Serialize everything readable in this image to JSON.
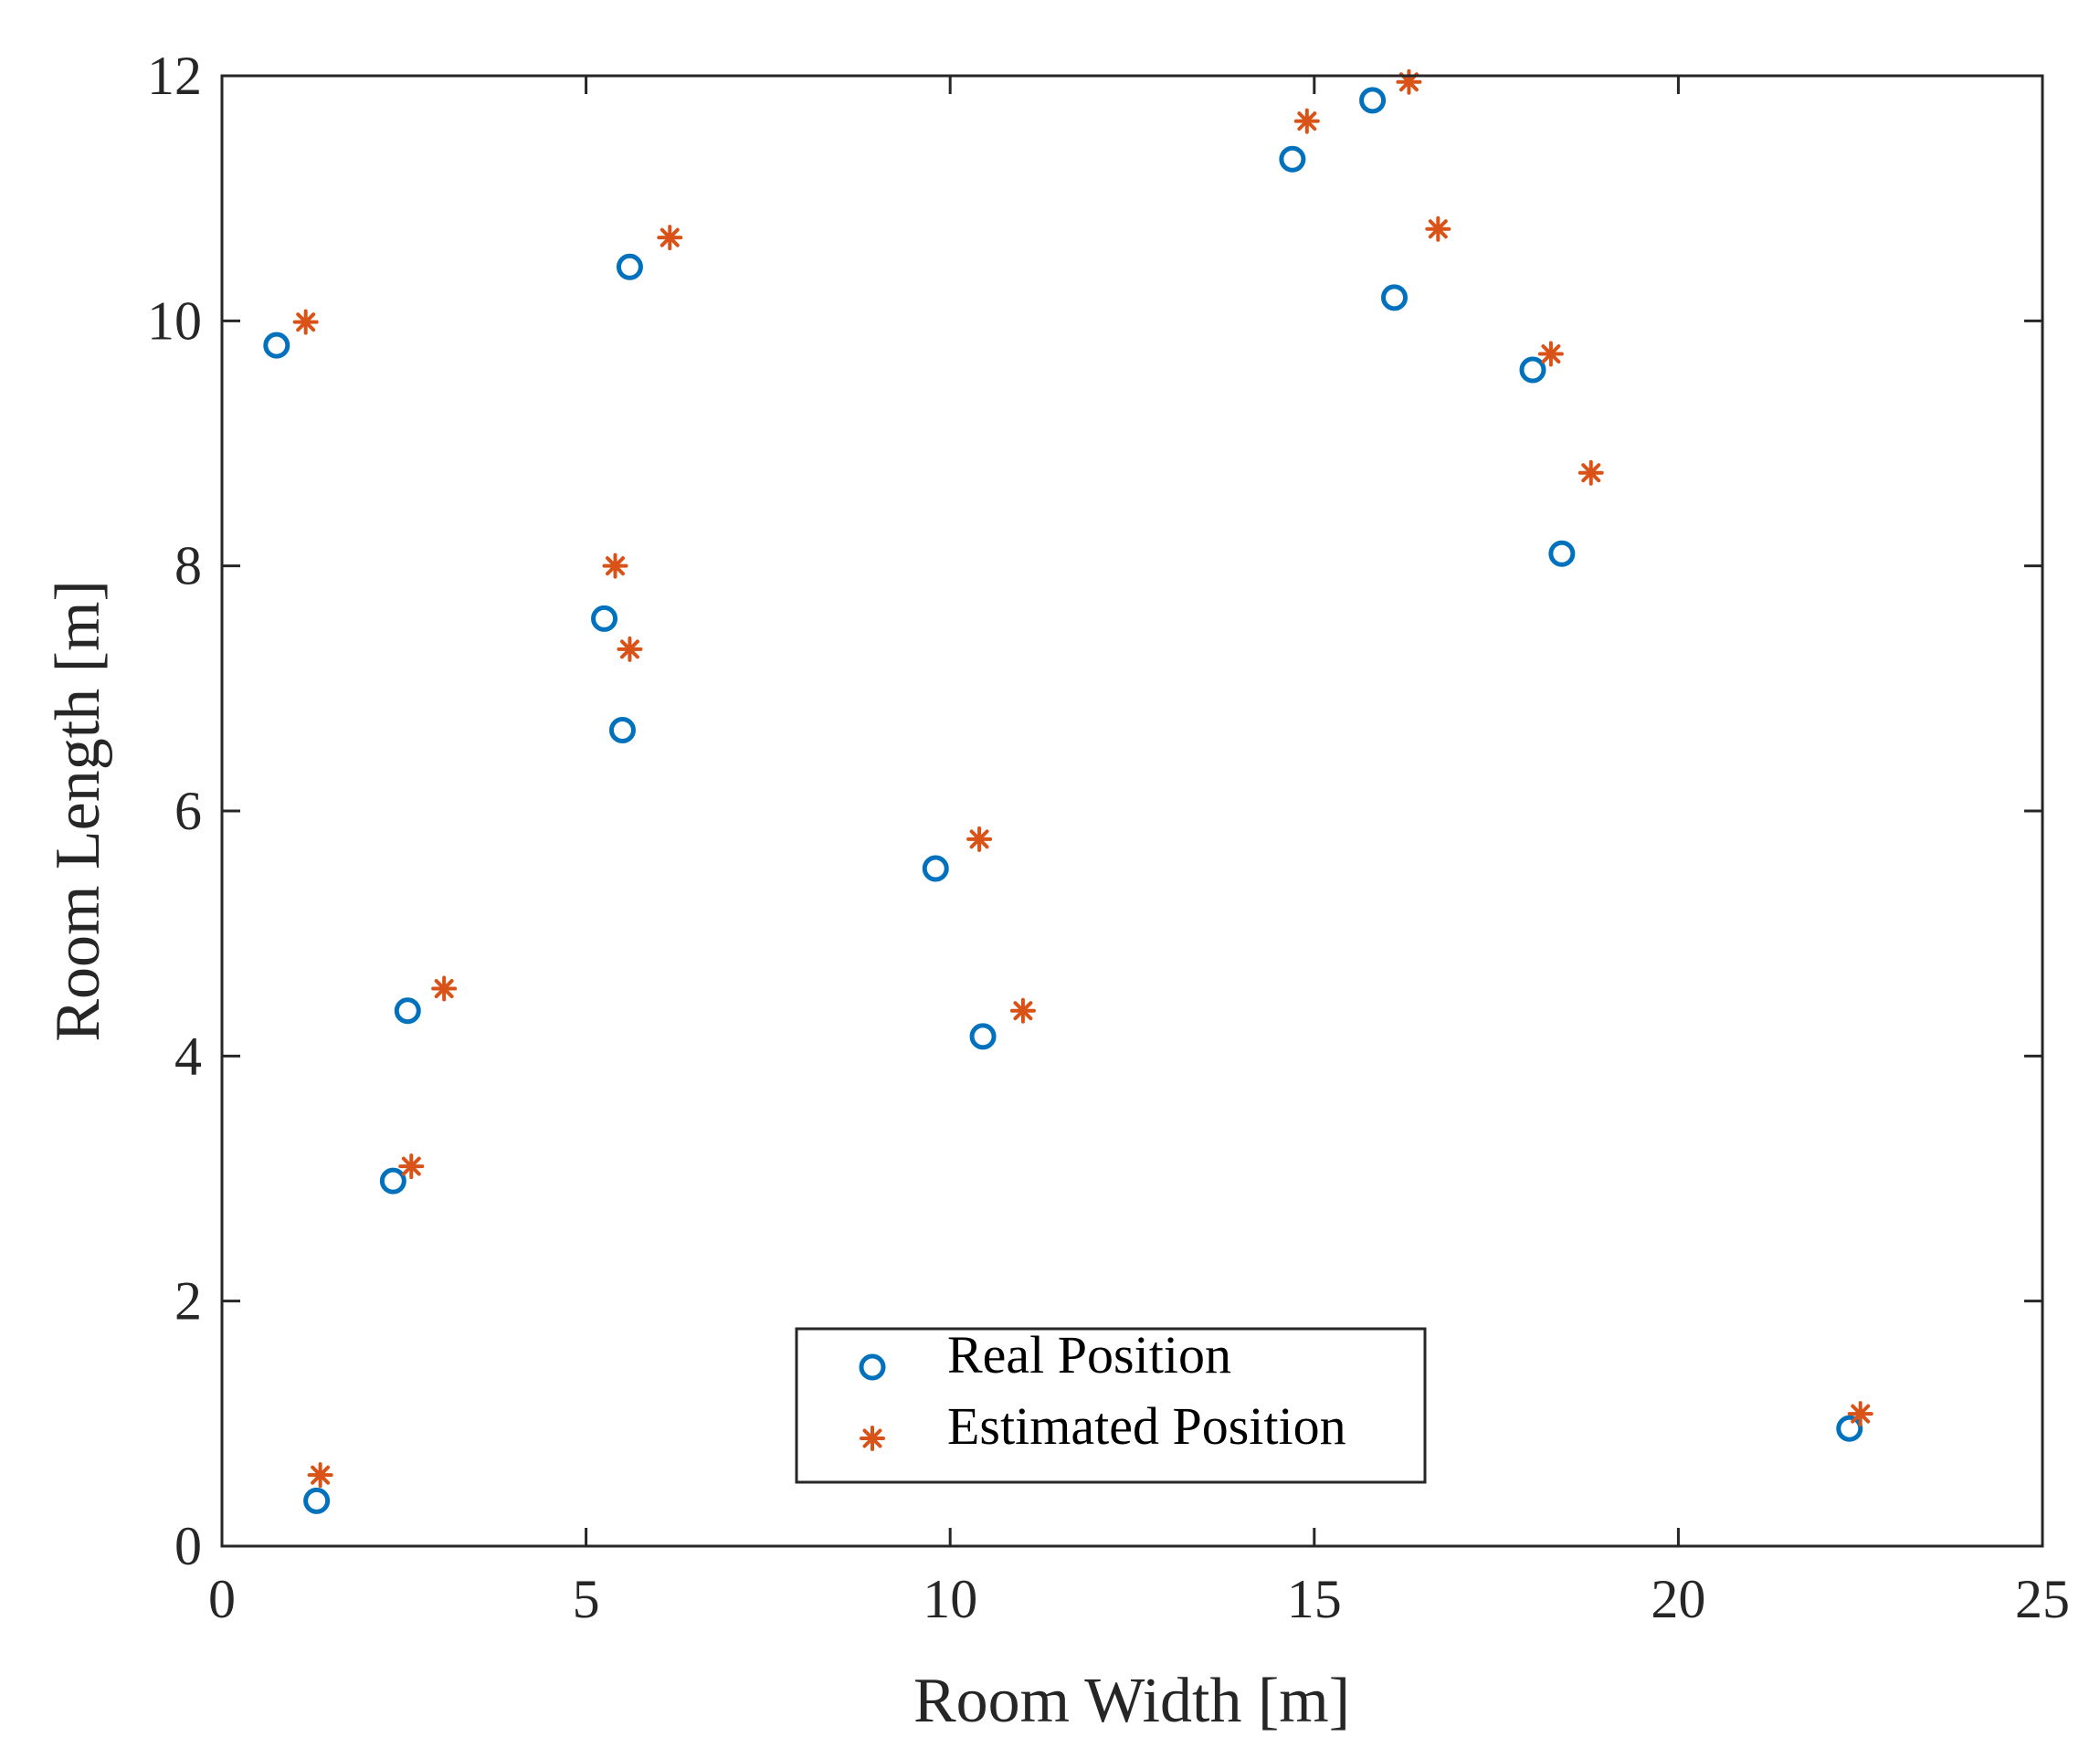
{
  "chart_data": {
    "type": "scatter",
    "title": "",
    "xlabel": "Room Width [m]",
    "ylabel": "Room Length [m]",
    "xlim": [
      0,
      25
    ],
    "ylim": [
      0,
      12
    ],
    "xticks": [
      0,
      5,
      10,
      15,
      20,
      25
    ],
    "yticks": [
      0,
      2,
      4,
      6,
      8,
      10,
      12
    ],
    "xtick_labels": [
      "0",
      "5",
      "10",
      "15",
      "20",
      "25"
    ],
    "ytick_labels": [
      "0",
      "2",
      "4",
      "6",
      "8",
      "10",
      "12"
    ],
    "grid": false,
    "legend_position": "bottom-center",
    "series": [
      {
        "name": "Real Position",
        "marker": "circle",
        "color": "#0072BD",
        "points": [
          [
            0.75,
            9.8
          ],
          [
            1.3,
            0.37
          ],
          [
            2.35,
            2.98
          ],
          [
            2.55,
            4.37
          ],
          [
            5.25,
            7.57
          ],
          [
            5.5,
            6.66
          ],
          [
            5.6,
            10.44
          ],
          [
            9.8,
            5.53
          ],
          [
            10.45,
            4.16
          ],
          [
            14.7,
            11.32
          ],
          [
            15.8,
            11.8
          ],
          [
            16.1,
            10.19
          ],
          [
            18.0,
            9.6
          ],
          [
            18.4,
            8.1
          ],
          [
            22.35,
            0.96
          ]
        ]
      },
      {
        "name": "Estimated Position",
        "marker": "asterisk",
        "color": "#D95319",
        "points": [
          [
            1.15,
            9.99
          ],
          [
            1.35,
            0.58
          ],
          [
            2.6,
            3.1
          ],
          [
            3.05,
            4.55
          ],
          [
            5.4,
            8.0
          ],
          [
            5.6,
            7.32
          ],
          [
            6.15,
            10.68
          ],
          [
            10.4,
            5.77
          ],
          [
            11.0,
            4.37
          ],
          [
            14.9,
            11.63
          ],
          [
            16.3,
            11.95
          ],
          [
            16.7,
            10.75
          ],
          [
            18.25,
            9.73
          ],
          [
            18.8,
            8.76
          ],
          [
            22.5,
            1.08
          ]
        ]
      }
    ]
  }
}
